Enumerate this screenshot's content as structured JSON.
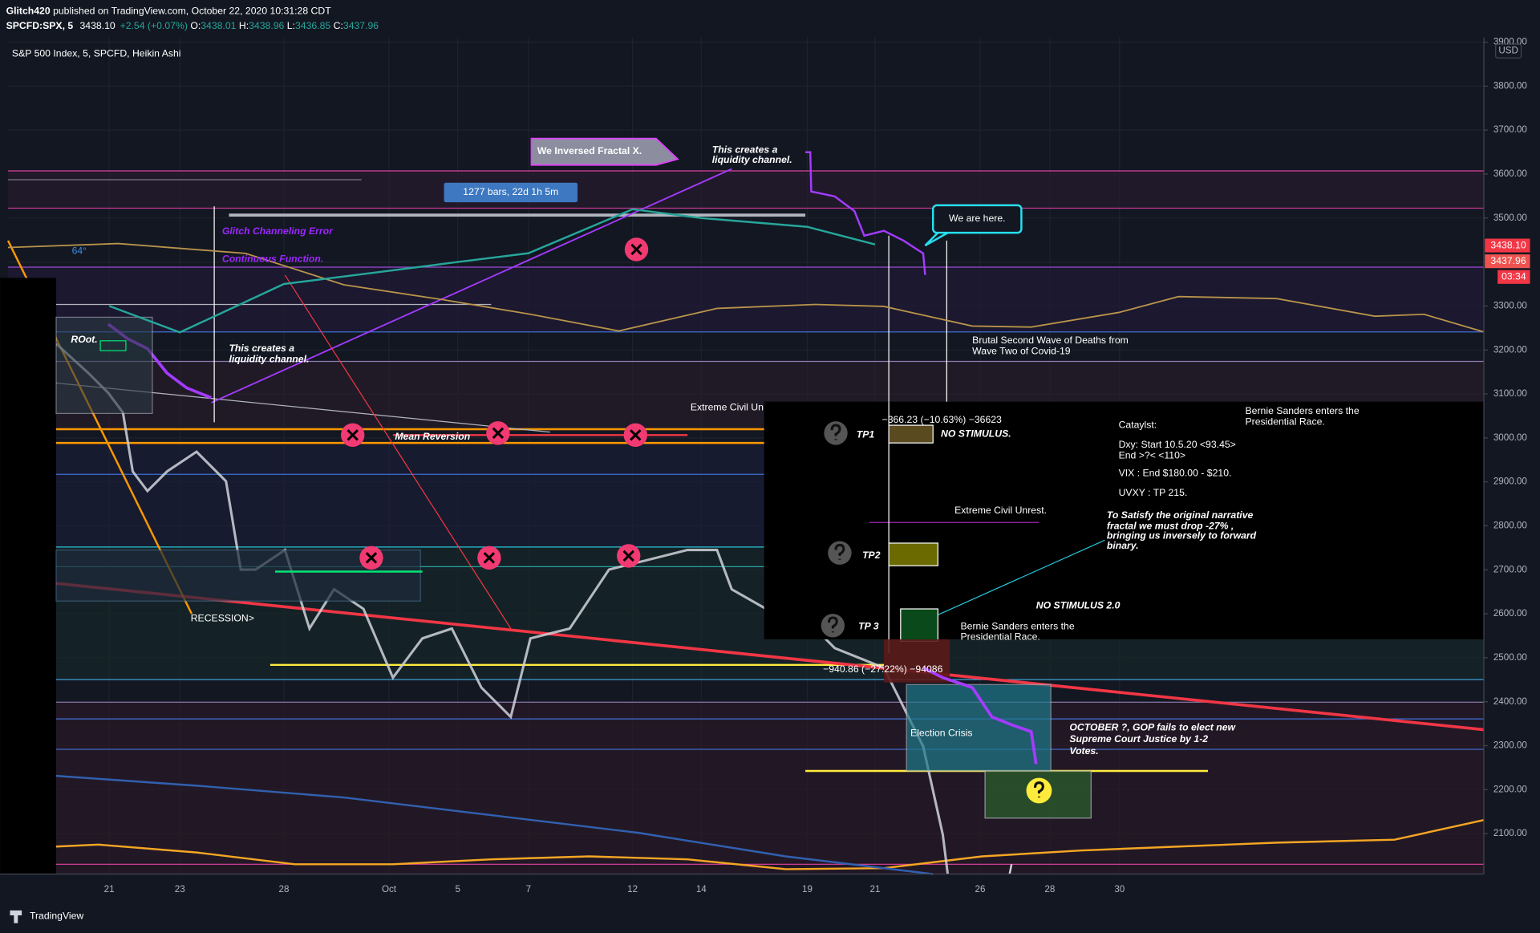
{
  "header": {
    "author": "Glitch420",
    "published": "published on TradingView.com, October 22, 2020 10:31:28 CDT",
    "symbol": "SPCFD:SPX, 5",
    "last": "3438.10",
    "change": "+2.54 (+0.07%)",
    "open_label": "O:",
    "open": "3438.01",
    "high_label": "H:",
    "high": "3438.96",
    "low_label": "L:",
    "low": "3436.85",
    "close_label": "C:",
    "close": "3437.96"
  },
  "chart_data": {
    "type": "line",
    "title": "S&P 500 Index, 5, SPCFD, Heikin Ashi",
    "categories": [
      "21",
      "23",
      "28",
      "Oct",
      "5",
      "7",
      "12",
      "14",
      "19",
      "21",
      "26",
      "28",
      "30"
    ],
    "values": [
      3300,
      3240,
      3350,
      3380,
      3400,
      3420,
      3520,
      3500,
      3480,
      3440,
      null,
      null,
      null
    ],
    "color": "#26a69a",
    "ylim": [
      2008,
      3911
    ],
    "yticks": [
      {
        "value": 2100,
        "label": "2100.00"
      },
      {
        "value": 2200,
        "label": "2200.00"
      },
      {
        "value": 2300,
        "label": "2300.00"
      },
      {
        "value": 2400,
        "label": "2400.00"
      },
      {
        "value": 2500,
        "label": "2500.00"
      },
      {
        "value": 2600,
        "label": "2600.00"
      },
      {
        "value": 2700,
        "label": "2700.00"
      },
      {
        "value": 2800,
        "label": "2800.00"
      },
      {
        "value": 2900,
        "label": "2900.00"
      },
      {
        "value": 3000,
        "label": "3000.00"
      },
      {
        "value": 3100,
        "label": "3100.00"
      },
      {
        "value": 3200,
        "label": "3200.00"
      },
      {
        "value": 3300,
        "label": "3300.00"
      },
      {
        "value": 3400,
        "label": "3400.00"
      },
      {
        "value": 3500,
        "label": "3500.00"
      },
      {
        "value": 3600,
        "label": "3600.00"
      },
      {
        "value": 3700,
        "label": "3700.00"
      },
      {
        "value": 3800,
        "label": "3800.00"
      },
      {
        "value": 3900,
        "label": "3900.00"
      }
    ],
    "grid": true,
    "currency": "USD",
    "price_label_1": "3438.10",
    "price_label_2": "3437.96",
    "countdown": "03:34"
  },
  "annotations": {
    "inversed": "We Inversed Fractal X.",
    "liquidity_1": [
      "This creates a",
      "liquidity channel."
    ],
    "liquidity_2": [
      "This creates a",
      "liquidity channel."
    ],
    "bars": "1277 bars, 22d 1h 5m",
    "glitch": "Glitch Channeling Error",
    "continuous": "Continuous Function.",
    "here": "We are here.",
    "brutal": [
      "Brutal Second Wave of Deaths from",
      "Wave Two of Covid-19"
    ],
    "root": "ROot.",
    "deg": "64°",
    "unrest_1": "Extreme Civil Un",
    "mean": "Mean Reversion",
    "recession": "RECESSION>",
    "drop_1": "−366.23 (−10.63%) −36623",
    "tp1": "TP1",
    "no_stim": "NO STIMULUS.",
    "catalyst": "Cataylst:",
    "dxy": [
      "Dxy: Start 10.5.20 <93.45>",
      "End >?< <110>"
    ],
    "vix": "VIX : End $180.00 - $210.",
    "uvxy": "UVXY : TP 215.",
    "bernie_1": [
      "Bernie Sanders enters the",
      "Presidential Race."
    ],
    "unrest_2": "Extreme Civil Unrest.",
    "satisfy": [
      "To Satisfy the original narrative",
      "fractal we must drop -27% ,",
      "bringing us inversely to forward",
      "binary."
    ],
    "tp2": "TP2",
    "no_stim_2": "NO STIMULUS 2.0",
    "tp3": "TP 3",
    "bernie_2": [
      "Bernie Sanders enters the",
      "Presidential Race."
    ],
    "drop_2": "−940.86 (−27.22%) −94086",
    "election": "Election Crisis",
    "october": [
      "OCTOBER ?, GOP fails to elect new",
      "Supreme Court Justice by 1-2",
      "Votes."
    ],
    "footer": "TradingView"
  }
}
